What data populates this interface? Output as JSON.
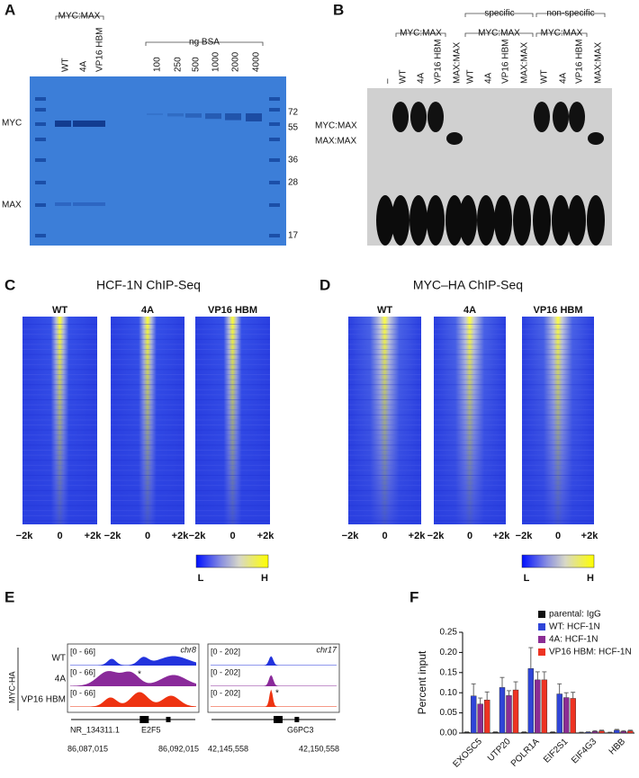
{
  "panel_a": {
    "label": "A",
    "group_label": "MYC:MAX",
    "lanes": [
      "WT",
      "4A",
      "VP16 HBM"
    ],
    "bsa_label": "ng BSA",
    "bsa_amounts": [
      "100",
      "250",
      "500",
      "1000",
      "2000",
      "4000"
    ],
    "markers": [
      "72",
      "55",
      "36",
      "28",
      "17"
    ],
    "bands": [
      "MYC",
      "MAX"
    ]
  },
  "panel_b": {
    "label": "B",
    "lanes": [
      "–",
      "WT",
      "4A",
      "VP16 HBM",
      "MAX:MAX",
      "WT",
      "4A",
      "VP16 HBM",
      "MAX:MAX",
      "WT",
      "4A",
      "VP16 HBM",
      "MAX:MAX"
    ],
    "groups": [
      "MYC:MAX",
      "MYC:MAX",
      "MYC:MAX"
    ],
    "specific": "specific",
    "non_specific": "non-specific",
    "bands": [
      "MYC:MAX",
      "MAX:MAX"
    ]
  },
  "panel_c": {
    "label": "C",
    "title": "HCF-1N ChIP-Seq",
    "columns": [
      "WT",
      "4A",
      "VP16 HBM"
    ],
    "xticks": [
      "−2k",
      "0",
      "+2k"
    ],
    "scale": [
      "L",
      "H"
    ]
  },
  "panel_d": {
    "label": "D",
    "title": "MYC–HA ChIP-Seq",
    "columns": [
      "WT",
      "4A",
      "VP16 HBM"
    ],
    "xticks": [
      "−2k",
      "0",
      "+2k"
    ],
    "scale": [
      "L",
      "H"
    ]
  },
  "panel_e": {
    "label": "E",
    "side_label": "MYC-HA",
    "tracks": [
      "WT",
      "4A",
      "VP16 HBM"
    ],
    "marker": "*",
    "loci": [
      {
        "range": "[0 - 66]",
        "chrom": "chr8",
        "genes": [
          "NR_134311.1",
          "E2F5"
        ],
        "coords": [
          "86,087,015",
          "86,092,015"
        ]
      },
      {
        "range": "[0 - 202]",
        "chrom": "chr17",
        "genes": [
          "G6PC3"
        ],
        "coords": [
          "42,145,558",
          "42,150,558"
        ]
      }
    ]
  },
  "chart_data": {
    "type": "bar",
    "label": "F",
    "ylabel": "Percent input",
    "categories": [
      "EXOSC5",
      "UTP20",
      "POLR1A",
      "EIF2S1",
      "EIF4G3",
      "HBB"
    ],
    "series": [
      {
        "name": "parental: IgG",
        "color": "#111111",
        "values": [
          0.002,
          0.002,
          0.002,
          0.002,
          0.001,
          0.001
        ],
        "errors": [
          0.001,
          0.001,
          0.001,
          0.001,
          0.001,
          0.001
        ]
      },
      {
        "name": "WT: HCF-1N",
        "color": "#2f45d8",
        "values": [
          0.092,
          0.113,
          0.16,
          0.097,
          0.002,
          0.007
        ],
        "errors": [
          0.03,
          0.025,
          0.052,
          0.025,
          0.001,
          0.002
        ]
      },
      {
        "name": "4A: HCF-1N",
        "color": "#8b2d94",
        "values": [
          0.072,
          0.093,
          0.132,
          0.088,
          0.004,
          0.004
        ],
        "errors": [
          0.015,
          0.012,
          0.02,
          0.012,
          0.002,
          0.002
        ]
      },
      {
        "name": "VP16 HBM: HCF-1N",
        "color": "#ee3322",
        "values": [
          0.082,
          0.107,
          0.132,
          0.086,
          0.005,
          0.005
        ],
        "errors": [
          0.02,
          0.02,
          0.02,
          0.015,
          0.002,
          0.002
        ]
      }
    ],
    "ylim": [
      0,
      0.25
    ],
    "yticks": [
      {
        "value": 0,
        "label": "0.00"
      },
      {
        "value": 0.05,
        "label": "0.05"
      },
      {
        "value": 0.1,
        "label": "0.10"
      },
      {
        "value": 0.15,
        "label": "0.15"
      },
      {
        "value": 0.2,
        "label": "0.20"
      },
      {
        "value": 0.25,
        "label": "0.25"
      }
    ],
    "legend": "upper-right"
  }
}
